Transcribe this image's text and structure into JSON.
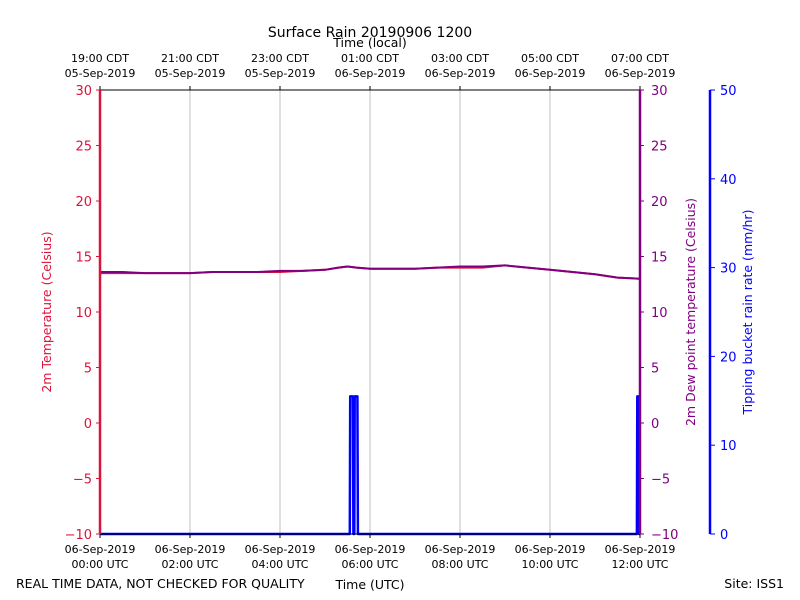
{
  "chart_data": {
    "type": "line",
    "title": "Surface Rain 20190906 1200",
    "top_axis_label": "Time (local)",
    "bottom_axis_label": "Time (UTC)",
    "top_ticks": [
      {
        "t": 0,
        "line1": "19:00 CDT",
        "line2": "05-Sep-2019"
      },
      {
        "t": 2,
        "line1": "21:00 CDT",
        "line2": "05-Sep-2019"
      },
      {
        "t": 4,
        "line1": "23:00 CDT",
        "line2": "05-Sep-2019"
      },
      {
        "t": 6,
        "line1": "01:00 CDT",
        "line2": "06-Sep-2019"
      },
      {
        "t": 8,
        "line1": "03:00 CDT",
        "line2": "06-Sep-2019"
      },
      {
        "t": 10,
        "line1": "05:00 CDT",
        "line2": "06-Sep-2019"
      },
      {
        "t": 12,
        "line1": "07:00 CDT",
        "line2": "06-Sep-2019"
      }
    ],
    "bottom_ticks": [
      {
        "t": 0,
        "line1": "06-Sep-2019",
        "line2": "00:00 UTC"
      },
      {
        "t": 2,
        "line1": "06-Sep-2019",
        "line2": "02:00 UTC"
      },
      {
        "t": 4,
        "line1": "06-Sep-2019",
        "line2": "04:00 UTC"
      },
      {
        "t": 6,
        "line1": "06-Sep-2019",
        "line2": "06:00 UTC"
      },
      {
        "t": 8,
        "line1": "06-Sep-2019",
        "line2": "08:00 UTC"
      },
      {
        "t": 10,
        "line1": "06-Sep-2019",
        "line2": "10:00 UTC"
      },
      {
        "t": 12,
        "line1": "06-Sep-2019",
        "line2": "12:00 UTC"
      }
    ],
    "xlim": [
      0,
      12
    ],
    "left_axis": {
      "label": "2m Temperature (Celsius)",
      "ylim": [
        -10,
        30
      ],
      "ticks": [
        30,
        25,
        20,
        15,
        10,
        5,
        0,
        -5,
        -10
      ],
      "color": "#dc143c"
    },
    "right_axis": {
      "label": "2m Dew point temperature (Celsius)",
      "ylim": [
        -10,
        30
      ],
      "ticks": [
        30,
        25,
        20,
        15,
        10,
        5,
        0,
        -5,
        -10
      ],
      "color": "#800080"
    },
    "rain_axis": {
      "label": "Tipping bucket rain rate (mm/hr)",
      "ylim": [
        0,
        50
      ],
      "ticks": [
        50,
        40,
        30,
        20,
        10,
        0
      ],
      "color": "#0000ff"
    },
    "grid": "vertical",
    "series": [
      {
        "name": "2m Temperature",
        "axis": "left",
        "color": "#dc143c",
        "x": [
          0,
          0.5,
          1,
          1.5,
          2,
          2.5,
          3,
          3.5,
          4,
          4.5,
          5,
          5.3,
          5.5,
          5.7,
          6,
          6.5,
          7,
          7.5,
          8,
          8.5,
          9,
          9.5,
          10,
          10.5,
          11,
          11.5,
          12
        ],
        "y": [
          13.5,
          13.5,
          13.5,
          13.5,
          13.5,
          13.6,
          13.6,
          13.6,
          13.6,
          13.7,
          13.8,
          14.0,
          14.1,
          14.0,
          13.9,
          13.9,
          13.9,
          14.0,
          14.0,
          14.0,
          14.2,
          14.0,
          13.8,
          13.6,
          13.4,
          13.1,
          13.0
        ]
      },
      {
        "name": "2m Dew point temperature",
        "axis": "right",
        "color": "#800080",
        "x": [
          0,
          0.5,
          1,
          1.5,
          2,
          2.5,
          3,
          3.5,
          4,
          4.5,
          5,
          5.3,
          5.5,
          5.7,
          6,
          6.5,
          7,
          7.5,
          8,
          8.5,
          9,
          9.5,
          10,
          10.5,
          11,
          11.5,
          12
        ],
        "y": [
          13.6,
          13.6,
          13.5,
          13.5,
          13.5,
          13.6,
          13.6,
          13.6,
          13.7,
          13.7,
          13.8,
          14.0,
          14.1,
          14.0,
          13.9,
          13.9,
          13.9,
          14.0,
          14.1,
          14.1,
          14.2,
          14.0,
          13.8,
          13.6,
          13.4,
          13.1,
          13.0
        ]
      },
      {
        "name": "Tipping bucket rain rate",
        "axis": "rain",
        "color": "#0000ff",
        "x": [
          0,
          5.55,
          5.56,
          5.62,
          5.63,
          5.65,
          5.66,
          5.72,
          5.73,
          11.93,
          11.94,
          11.97,
          11.98,
          12
        ],
        "y": [
          0,
          0,
          15.5,
          15.5,
          0,
          0,
          15.5,
          15.5,
          0,
          0,
          15.5,
          15.5,
          0,
          0
        ]
      }
    ]
  },
  "footer": {
    "disclaimer": "REAL TIME DATA, NOT CHECKED FOR QUALITY",
    "site": "Site: ISS1"
  }
}
